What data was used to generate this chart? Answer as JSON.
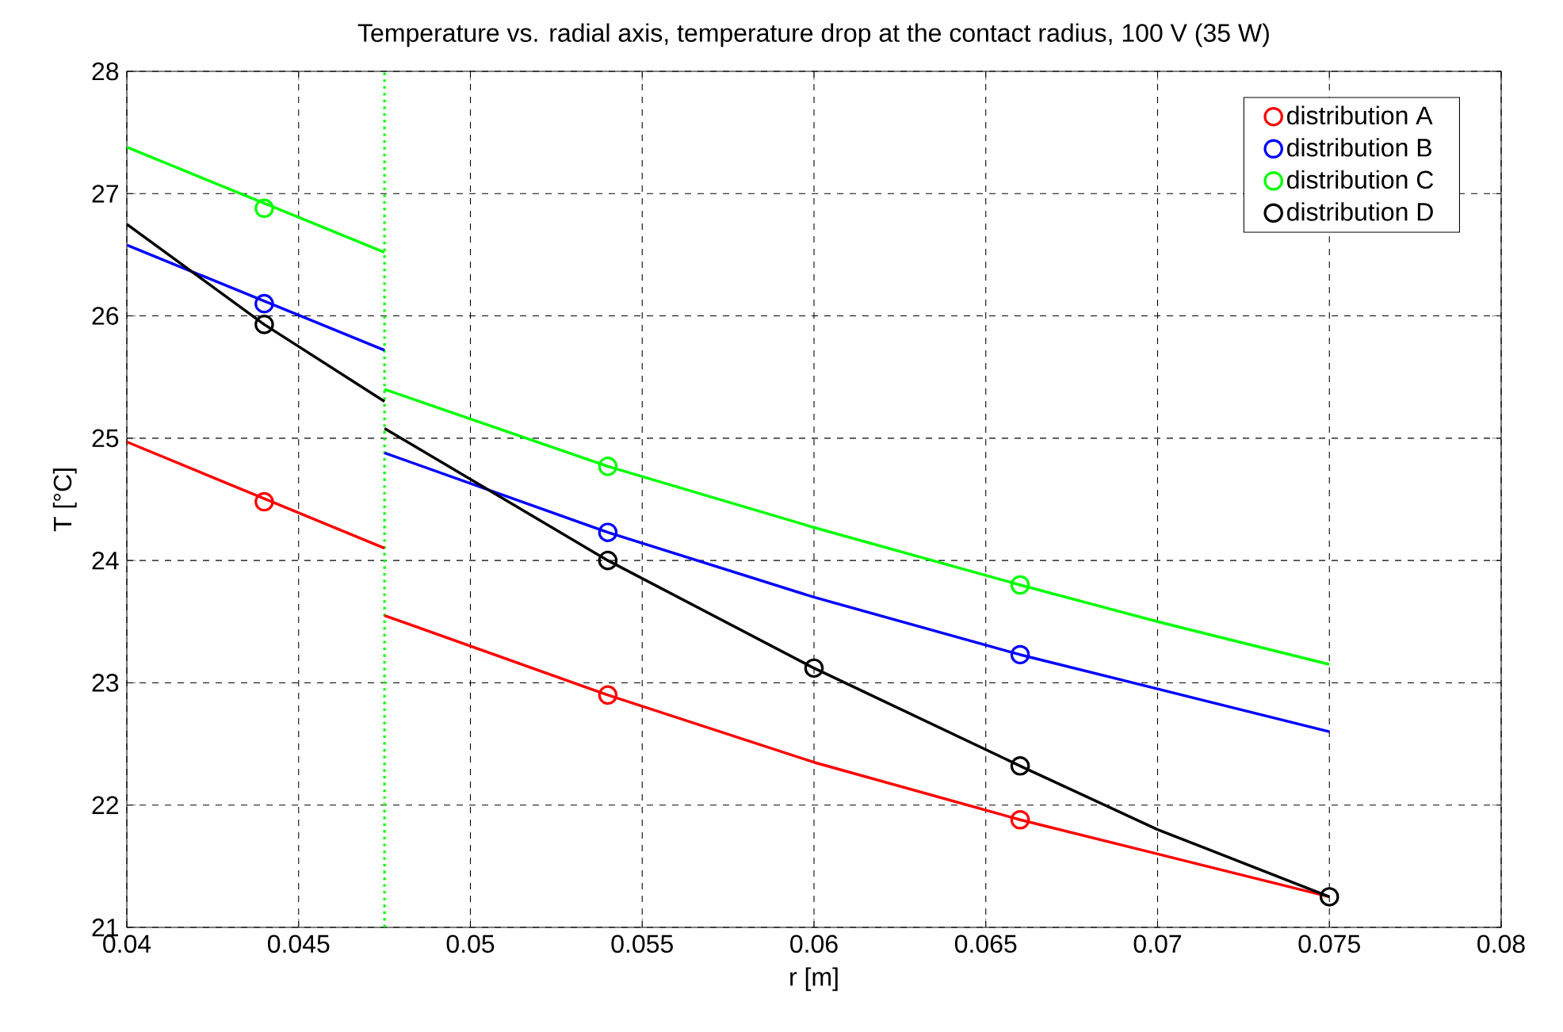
{
  "chart_data": {
    "type": "line",
    "title": "Temperature vs. radial axis, temperature drop at the contact radius, 100 V (35 W)",
    "xlabel": "r [m]",
    "ylabel": "T [°C]",
    "xlim": [
      0.04,
      0.08
    ],
    "ylim": [
      21,
      28
    ],
    "xticks": [
      0.04,
      0.045,
      0.05,
      0.055,
      0.06,
      0.065,
      0.07,
      0.075,
      0.08
    ],
    "yticks": [
      21,
      22,
      23,
      24,
      25,
      26,
      27,
      28
    ],
    "grid": true,
    "legend": "top right",
    "ref_lines": [
      {
        "axis": "x",
        "value": 0.0475,
        "color": "#00ff00",
        "line_style": "dotted"
      }
    ],
    "series": [
      {
        "color": "#ff0000",
        "x": [
          0.04,
          0.0475
        ],
        "values": [
          24.97,
          24.1
        ]
      },
      {
        "color": "#ff0000",
        "x": [
          0.0475,
          0.054,
          0.06,
          0.066,
          0.07,
          0.075
        ],
        "values": [
          23.55,
          22.9,
          22.35,
          21.88,
          21.6,
          21.25
        ]
      },
      {
        "color": "#0000ff",
        "x": [
          0.04,
          0.0475
        ],
        "values": [
          26.58,
          25.72
        ]
      },
      {
        "color": "#0000ff",
        "x": [
          0.0475,
          0.054,
          0.06,
          0.066,
          0.07,
          0.075
        ],
        "values": [
          24.88,
          24.23,
          23.7,
          23.23,
          22.95,
          22.6
        ]
      },
      {
        "color": "#00ff00",
        "x": [
          0.04,
          0.0475
        ],
        "values": [
          27.38,
          26.52
        ]
      },
      {
        "color": "#00ff00",
        "x": [
          0.0475,
          0.054,
          0.06,
          0.066,
          0.07,
          0.075
        ],
        "values": [
          25.4,
          24.77,
          24.27,
          23.8,
          23.5,
          23.15
        ]
      },
      {
        "color": "#000000",
        "x": [
          0.04,
          0.044,
          0.0475
        ],
        "values": [
          26.75,
          25.93,
          25.3
        ]
      },
      {
        "color": "#000000",
        "x": [
          0.0475,
          0.054,
          0.06,
          0.066,
          0.07,
          0.075
        ],
        "values": [
          25.08,
          24.0,
          23.12,
          22.32,
          21.8,
          21.25
        ]
      },
      {
        "type": "scatter",
        "name": "distribution A",
        "color": "#ff0000",
        "marker": "circle",
        "x": [
          0.044,
          0.054,
          0.066
        ],
        "values": [
          24.48,
          22.9,
          21.88
        ]
      },
      {
        "type": "scatter",
        "name": "distribution B",
        "color": "#0000ff",
        "marker": "circle",
        "x": [
          0.044,
          0.054,
          0.066
        ],
        "values": [
          26.1,
          24.23,
          23.23
        ]
      },
      {
        "type": "scatter",
        "name": "distribution C",
        "color": "#00ff00",
        "marker": "circle",
        "x": [
          0.044,
          0.054,
          0.066
        ],
        "values": [
          26.88,
          24.77,
          23.8
        ]
      },
      {
        "type": "scatter",
        "name": "distribution D",
        "color": "#000000",
        "marker": "circle",
        "x": [
          0.044,
          0.054,
          0.06,
          0.066,
          0.075
        ],
        "values": [
          25.93,
          24.0,
          23.12,
          22.32,
          21.25
        ]
      }
    ]
  }
}
